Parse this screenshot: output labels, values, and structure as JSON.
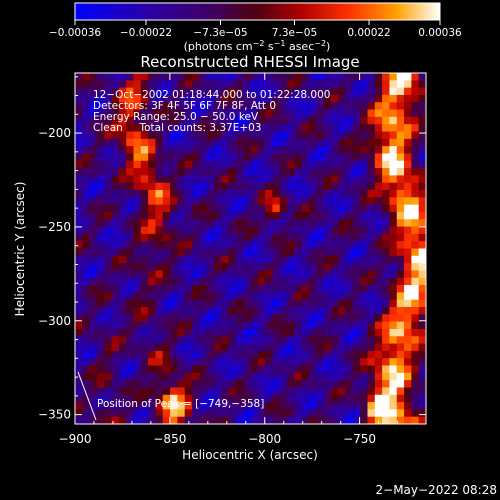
{
  "chart_data": {
    "type": "heatmap",
    "title": "Reconstructed RHESSI Image",
    "xlabel": "Heliocentric X (arcsec)",
    "ylabel": "Heliocentric Y (arcsec)",
    "xlim": [
      -900,
      -715
    ],
    "ylim": [
      -355,
      -168
    ],
    "x_ticks": [
      -900,
      -850,
      -800,
      -750
    ],
    "x_tick_labels": [
      "−900",
      "−850",
      "−800",
      "−750"
    ],
    "y_ticks": [
      -200,
      -250,
      -300,
      -350
    ],
    "y_tick_labels": [
      "−200",
      "−250",
      "−300",
      "−350"
    ],
    "colorbar": {
      "range": [
        -0.00036,
        0.00036
      ],
      "ticks": [
        -0.00036,
        -0.00022,
        -7.3e-05,
        7.3e-05,
        0.00022,
        0.00036
      ],
      "tick_labels": [
        "−0.00036",
        "−0.00022",
        "−7.3e−05",
        "7.3e−05",
        "0.00022",
        "0.00036"
      ],
      "units_prefix": "(photons cm",
      "units_exp1": "−2",
      "units_mid1": " s",
      "units_exp2": "−1",
      "units_mid2": " asec",
      "units_exp3": "−2",
      "units_suffix": ")",
      "colors": [
        "#0000ff",
        "#2000a0",
        "#400060",
        "#600020",
        "#a00000",
        "#ff2000",
        "#ff8000",
        "#ffd000",
        "#ffffff"
      ]
    },
    "annotations": [
      "12−Oct−2002 01:18:44.000 to 01:22:28.000",
      "Detectors: 3F 4F 5F 6F 7F 8F, Att 0",
      "Energy Range: 25.0 − 50.0 keV",
      "Clean     Total counts: 3.37E+03"
    ],
    "peak_label": "Position of Peak = [",
    "peak_value": "−749,−358",
    "peak_close": "]",
    "peak": [
      -749,
      -358
    ]
  },
  "footer_timestamp": "2−May−2022 08:28"
}
